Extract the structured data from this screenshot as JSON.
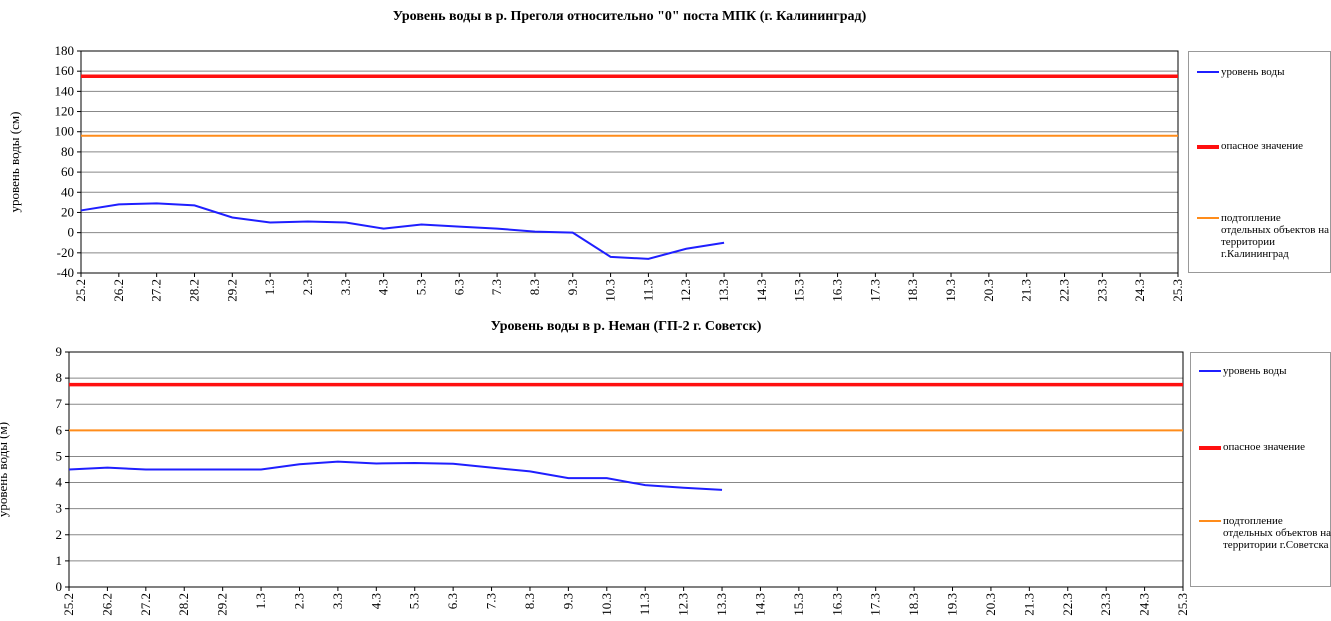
{
  "chart_data": [
    {
      "type": "line",
      "title": "Уровень воды в р. Преголя относительно \"0\" поста МПК (г. Калининград)",
      "y_label": "уровень воды (см)",
      "categories": [
        "25.2",
        "26.2",
        "27.2",
        "28.2",
        "29.2",
        "1.3",
        "2.3",
        "3.3",
        "4.3",
        "5.3",
        "6.3",
        "7.3",
        "8.3",
        "9.3",
        "10.3",
        "11.3",
        "12.3",
        "13.3",
        "14.3",
        "15.3",
        "16.3",
        "17.3",
        "18.3",
        "19.3",
        "20.3",
        "21.3",
        "22.3",
        "23.3",
        "24.3",
        "25.3"
      ],
      "ylim": [
        -40,
        180
      ],
      "yticks": [
        -40,
        -20,
        0,
        20,
        40,
        60,
        80,
        100,
        120,
        140,
        160,
        180
      ],
      "grid": true,
      "series": [
        {
          "name": "уровень воды",
          "color": "#1f1fff",
          "values": [
            22,
            28,
            29,
            27,
            15,
            10,
            11,
            10,
            4,
            8,
            6,
            4,
            1,
            0,
            -24,
            -26,
            -16,
            -10,
            null,
            null,
            null,
            null,
            null,
            null,
            null,
            null,
            null,
            null,
            null,
            null
          ]
        },
        {
          "name": "опасное значение",
          "color": "#ff1010",
          "values": [
            155,
            155,
            155,
            155,
            155,
            155,
            155,
            155,
            155,
            155,
            155,
            155,
            155,
            155,
            155,
            155,
            155,
            155,
            155,
            155,
            155,
            155,
            155,
            155,
            155,
            155,
            155,
            155,
            155,
            155
          ]
        },
        {
          "name": "подтопление отдельных объектов на территории г.Калининград",
          "color": "#ff8c1a",
          "values": [
            96,
            96,
            96,
            96,
            96,
            96,
            96,
            96,
            96,
            96,
            96,
            96,
            96,
            96,
            96,
            96,
            96,
            96,
            96,
            96,
            96,
            96,
            96,
            96,
            96,
            96,
            96,
            96,
            96,
            96
          ]
        }
      ]
    },
    {
      "type": "line",
      "title": "Уровень воды в р. Неман (ГП-2 г. Советск)",
      "y_label": "уровень воды (м)",
      "categories": [
        "25.2",
        "26.2",
        "27.2",
        "28.2",
        "29.2",
        "1.3",
        "2.3",
        "3.3",
        "4.3",
        "5.3",
        "6.3",
        "7.3",
        "8.3",
        "9.3",
        "10.3",
        "11.3",
        "12.3",
        "13.3",
        "14.3",
        "15.3",
        "16.3",
        "17.3",
        "18.3",
        "19.3",
        "20.3",
        "21.3",
        "22.3",
        "23.3",
        "24.3",
        "25.3"
      ],
      "ylim": [
        0,
        9
      ],
      "yticks": [
        0,
        1,
        2,
        3,
        4,
        5,
        6,
        7,
        8,
        9
      ],
      "grid": true,
      "series": [
        {
          "name": "уровень воды",
          "color": "#1f1fff",
          "values": [
            4.5,
            4.57,
            4.5,
            4.5,
            4.5,
            4.5,
            4.7,
            4.8,
            4.73,
            4.75,
            4.72,
            4.57,
            4.43,
            4.17,
            4.17,
            3.9,
            3.8,
            3.72,
            null,
            null,
            null,
            null,
            null,
            null,
            null,
            null,
            null,
            null,
            null,
            null
          ]
        },
        {
          "name": "опасное значение",
          "color": "#ff1010",
          "values": [
            7.75,
            7.75,
            7.75,
            7.75,
            7.75,
            7.75,
            7.75,
            7.75,
            7.75,
            7.75,
            7.75,
            7.75,
            7.75,
            7.75,
            7.75,
            7.75,
            7.75,
            7.75,
            7.75,
            7.75,
            7.75,
            7.75,
            7.75,
            7.75,
            7.75,
            7.75,
            7.75,
            7.75,
            7.75,
            7.75
          ]
        },
        {
          "name": "подтопление отдельных объектов на территории г.Советска",
          "color": "#ff8c1a",
          "values": [
            6,
            6,
            6,
            6,
            6,
            6,
            6,
            6,
            6,
            6,
            6,
            6,
            6,
            6,
            6,
            6,
            6,
            6,
            6,
            6,
            6,
            6,
            6,
            6,
            6,
            6,
            6,
            6,
            6,
            6
          ]
        }
      ]
    }
  ]
}
